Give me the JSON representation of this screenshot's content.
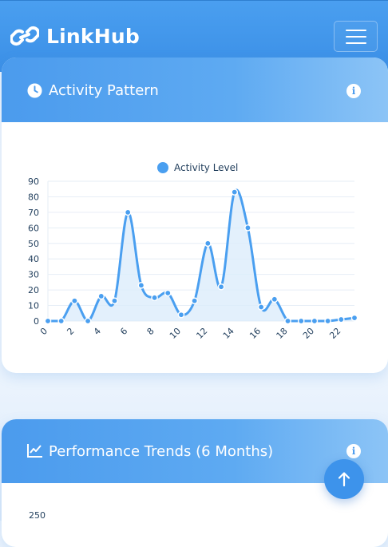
{
  "navbar": {
    "brand_name": "LinkHub",
    "brand_icon": "link-icon",
    "menu_icon": "hamburger-icon"
  },
  "activity_card": {
    "title": "Activity Pattern",
    "header_icon": "clock-icon",
    "info_icon": "info-icon",
    "info_symbol": "i"
  },
  "performance_card": {
    "title": "Performance Trends (6 Months)",
    "header_icon": "line-chart-icon",
    "info_icon": "info-icon",
    "info_symbol": "i",
    "first_y_tick": "250"
  },
  "scroll_top": {
    "icon": "arrow-up-icon"
  },
  "colors": {
    "primary": "#4a9ff0",
    "header_gradient_end": "#8cc4f6",
    "line": "#4a9ff0",
    "fill": "#dcecfb",
    "text": "#1f3c5a"
  },
  "chart_data": {
    "type": "line",
    "series": [
      {
        "name": "Activity Level",
        "x": [
          0,
          1,
          2,
          3,
          4,
          5,
          6,
          7,
          8,
          9,
          10,
          11,
          12,
          13,
          14,
          15,
          16,
          17,
          18,
          19,
          20,
          21,
          22,
          23
        ],
        "values": [
          0,
          0,
          13,
          0,
          16,
          13,
          70,
          23,
          15,
          18,
          4,
          13,
          50,
          22,
          83,
          60,
          9,
          14,
          0,
          0,
          0,
          0,
          1,
          2
        ]
      }
    ],
    "xticks": [
      "0",
      "2",
      "4",
      "6",
      "8",
      "10",
      "12",
      "14",
      "16",
      "18",
      "20",
      "22"
    ],
    "yticks": [
      "0",
      "10",
      "20",
      "30",
      "40",
      "50",
      "60",
      "70",
      "80",
      "90"
    ],
    "ylim": [
      0,
      90
    ],
    "xlim": [
      0,
      23
    ],
    "legend_position": "top-center",
    "grid": true,
    "area_fill": true
  }
}
